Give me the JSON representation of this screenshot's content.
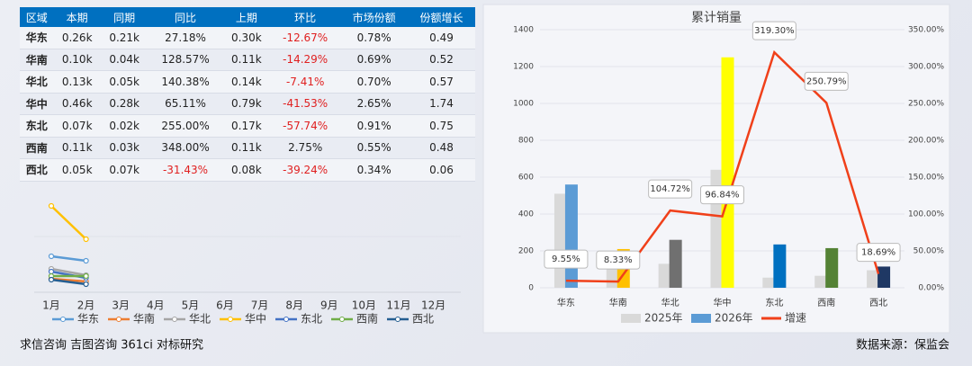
{
  "table": {
    "header": [
      "区域",
      "本期",
      "同期",
      "同比",
      "上期",
      "环比",
      "市场份额",
      "份额增长"
    ],
    "rows": [
      [
        "华东",
        "0.26k",
        "0.21k",
        "27.18%",
        "0.30k",
        "-12.67%",
        "0.78%",
        "0.49"
      ],
      [
        "华南",
        "0.10k",
        "0.04k",
        "128.57%",
        "0.11k",
        "-14.29%",
        "0.69%",
        "0.52"
      ],
      [
        "华北",
        "0.13k",
        "0.05k",
        "140.38%",
        "0.14k",
        "-7.41%",
        "0.70%",
        "0.57"
      ],
      [
        "华中",
        "0.46k",
        "0.28k",
        "65.11%",
        "0.79k",
        "-41.53%",
        "2.65%",
        "1.74"
      ],
      [
        "东北",
        "0.07k",
        "0.02k",
        "255.00%",
        "0.17k",
        "-57.74%",
        "0.91%",
        "0.75"
      ],
      [
        "西南",
        "0.11k",
        "0.03k",
        "348.00%",
        "0.11k",
        "2.75%",
        "0.55%",
        "0.48"
      ],
      [
        "西北",
        "0.05k",
        "0.07k",
        "-31.43%",
        "0.08k",
        "-39.24%",
        "0.34%",
        "0.06"
      ]
    ]
  },
  "chart_data": [
    {
      "type": "line",
      "categories": [
        "1月",
        "2月",
        "3月",
        "4月",
        "5月",
        "6月",
        "7月",
        "8月",
        "9月",
        "10月",
        "11月",
        "12月"
      ],
      "ylim": [
        0,
        100
      ],
      "series": [
        {
          "name": "华东",
          "color": "#5b9bd5",
          "values": [
            40,
            35,
            null,
            null,
            null,
            null,
            null,
            null,
            null,
            null,
            null,
            null
          ]
        },
        {
          "name": "华南",
          "color": "#ed7d31",
          "values": [
            15,
            12,
            null,
            null,
            null,
            null,
            null,
            null,
            null,
            null,
            null,
            null
          ]
        },
        {
          "name": "华北",
          "color": "#a5a5a5",
          "values": [
            26,
            19,
            null,
            null,
            null,
            null,
            null,
            null,
            null,
            null,
            null,
            null
          ]
        },
        {
          "name": "华中",
          "color": "#ffc000",
          "values": [
            96,
            59,
            null,
            null,
            null,
            null,
            null,
            null,
            null,
            null,
            null,
            null
          ]
        },
        {
          "name": "东北",
          "color": "#4472c4",
          "values": [
            23,
            16,
            null,
            null,
            null,
            null,
            null,
            null,
            null,
            null,
            null,
            null
          ]
        },
        {
          "name": "西南",
          "color": "#70ad47",
          "values": [
            18,
            18,
            null,
            null,
            null,
            null,
            null,
            null,
            null,
            null,
            null,
            null
          ]
        },
        {
          "name": "西北",
          "color": "#255e91",
          "values": [
            14,
            9,
            null,
            null,
            null,
            null,
            null,
            null,
            null,
            null,
            null,
            null
          ]
        }
      ]
    },
    {
      "type": "bar",
      "title": "累计销量",
      "categories": [
        "华东",
        "华南",
        "华北",
        "华中",
        "东北",
        "西南",
        "西北"
      ],
      "ylim": [
        0,
        1400
      ],
      "yticks": [
        0,
        200,
        400,
        600,
        800,
        1000,
        1200,
        1400
      ],
      "y2lim": [
        0,
        350
      ],
      "y2ticks": [
        {
          "value": 0,
          "label": "0.00%"
        },
        {
          "value": 50,
          "label": "50.00%"
        },
        {
          "value": 100,
          "label": "100.00%"
        },
        {
          "value": 150,
          "label": "150.00%"
        },
        {
          "value": 200,
          "label": "200.00%"
        },
        {
          "value": 250,
          "label": "250.00%"
        },
        {
          "value": 300,
          "label": "300.00%"
        },
        {
          "value": 350,
          "label": "350.00%"
        }
      ],
      "grid": true,
      "series": [
        {
          "name": "2025年",
          "color": "#d9d9d9",
          "values": [
            510,
            195,
            130,
            640,
            55,
            65,
            95
          ]
        },
        {
          "name": "2026年",
          "color": "#5b9bd5",
          "colors": [
            "#5b9bd5",
            "#ffc000",
            "#707070",
            "#ffff00",
            "#0070c0",
            "#548235",
            "#1f3864"
          ],
          "values": [
            560,
            210,
            260,
            1250,
            235,
            215,
            115
          ]
        },
        {
          "name": "增速",
          "type": "line",
          "axis": "y2",
          "color": "#f0401a",
          "values": [
            9.55,
            8.33,
            104.72,
            96.84,
            319.3,
            250.79,
            18.69
          ],
          "value_labels": [
            "9.55%",
            "8.33%",
            "104.72%",
            "96.84%",
            "319.30%",
            "250.79%",
            "18.69%"
          ]
        }
      ]
    }
  ],
  "footer": {
    "left": "求信咨询 吉图咨询 361ci 对标研究",
    "right": "数据来源：保监会"
  }
}
